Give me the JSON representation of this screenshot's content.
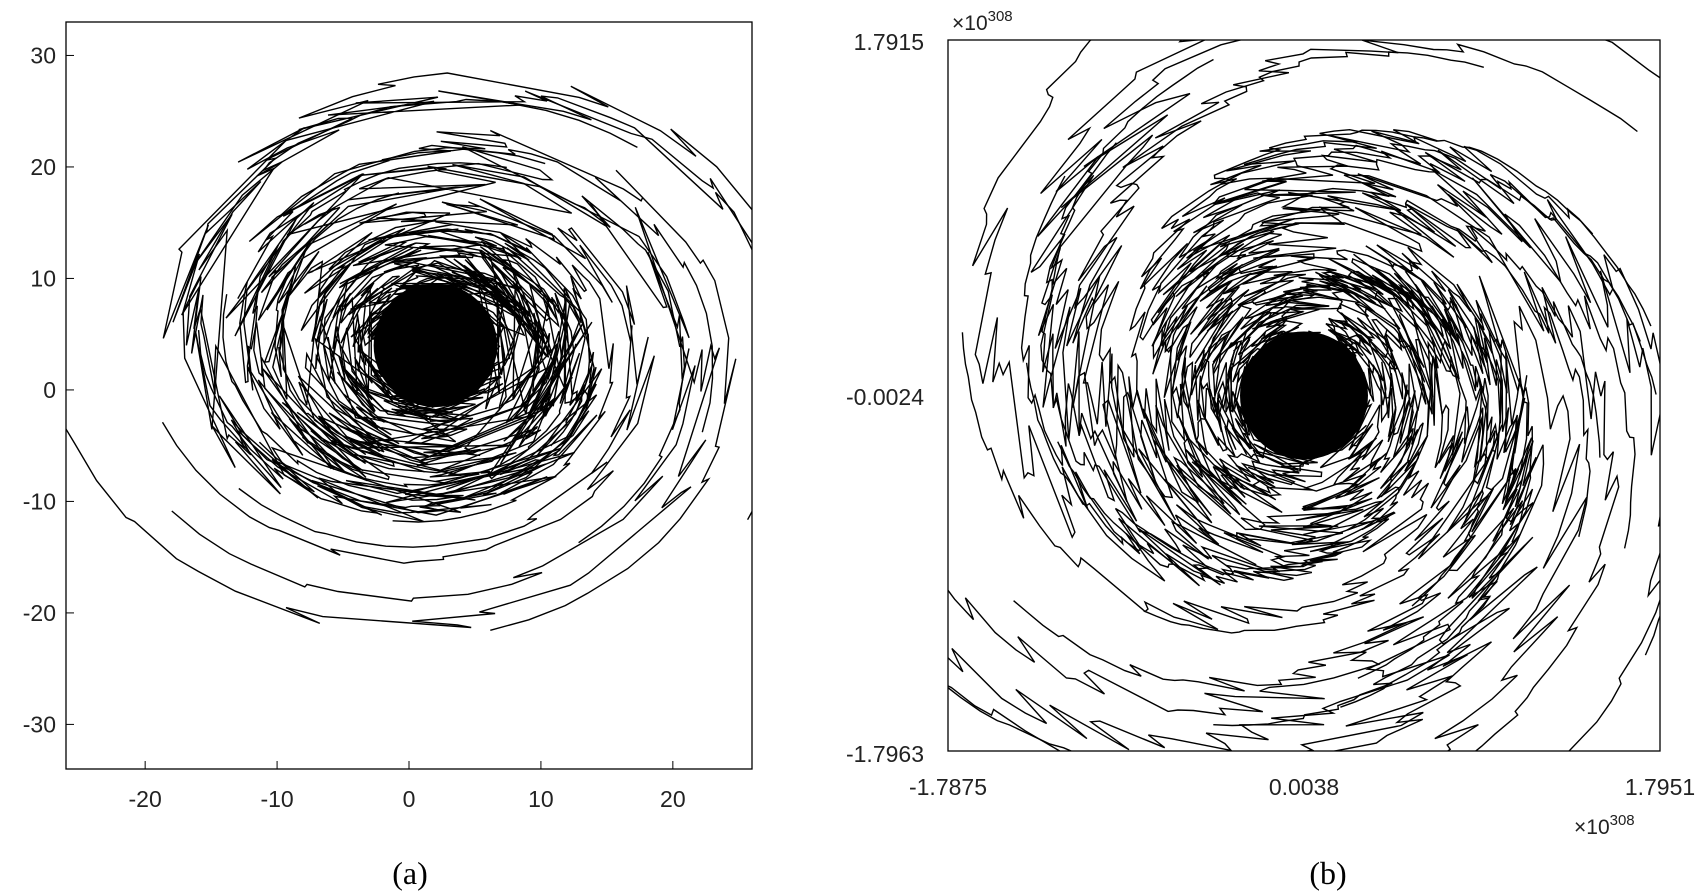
{
  "chart_data": [
    {
      "type": "line",
      "caption": "(a)",
      "xlim": [
        -26,
        26
      ],
      "ylim": [
        -34,
        33
      ],
      "x_ticks": [
        -20,
        -10,
        0,
        10,
        20
      ],
      "x_tick_labels": [
        "-20",
        "-10",
        "0",
        "10",
        "20"
      ],
      "y_ticks": [
        -30,
        -20,
        -10,
        0,
        10,
        20,
        30
      ],
      "y_tick_labels": [
        "-30",
        "-20",
        "-10",
        "0",
        "10",
        "20",
        "30"
      ],
      "grid": false,
      "description_of_marks": "many spiral trajectory line segments",
      "spiral": {
        "center": [
          2,
          4
        ],
        "arms": 20,
        "r_max": 30,
        "turn_factor": 1.4
      }
    },
    {
      "type": "line",
      "caption": "(b)",
      "xlim": [
        -1.7875,
        1.7951
      ],
      "ylim": [
        -1.7963,
        1.7915
      ],
      "x_tick_labels": [
        "-1.7875",
        "0.0038",
        "1.7951"
      ],
      "y_tick_labels": [
        "1.7915",
        "-0.0024",
        "-1.7963"
      ],
      "x_exponent_label": "×10",
      "x_exponent_sup": "308",
      "y_exponent_label": "×10",
      "y_exponent_sup": "308",
      "grid": false,
      "spiral": {
        "center": [
          0.0038,
          -0.0024
        ],
        "arms": 36,
        "r_max": 2.5,
        "turn_factor": 0.6
      }
    }
  ]
}
